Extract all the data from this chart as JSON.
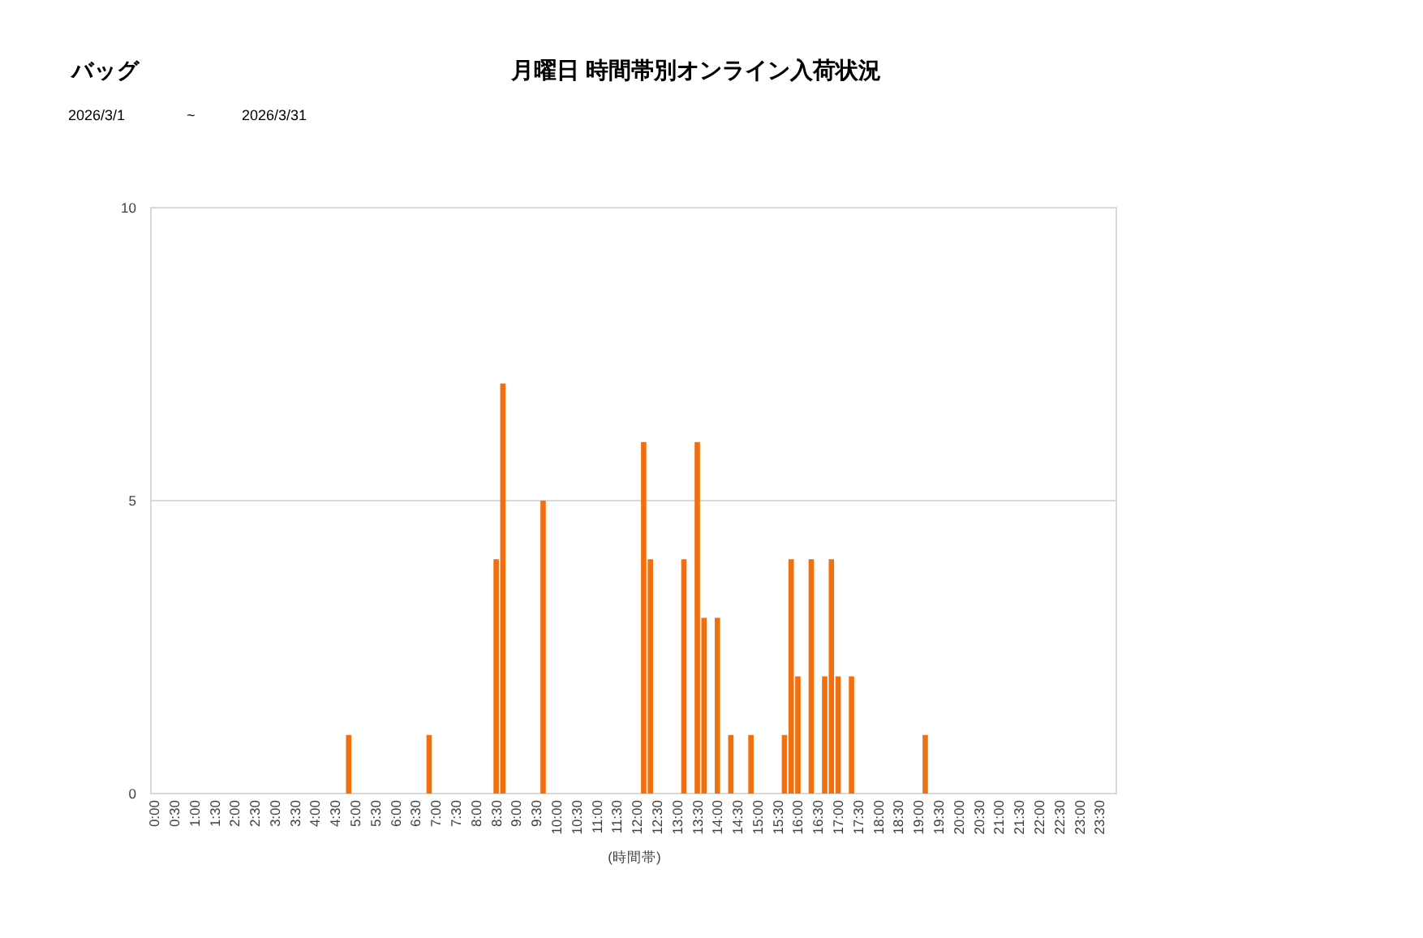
{
  "chart_data": {
    "type": "bar",
    "title": "月曜日 時間帯別オンライン入荷状況",
    "annotations": [
      "バッグ",
      "2026/3/1",
      "~",
      "2026/3/31"
    ],
    "xlabel": "(時間帯)",
    "categories": [
      "0:00",
      null,
      null,
      "0:30",
      null,
      null,
      "1:00",
      null,
      null,
      "1:30",
      null,
      null,
      "2:00",
      null,
      null,
      "2:30",
      null,
      null,
      "3:00",
      null,
      null,
      "3:30",
      null,
      null,
      "4:00",
      null,
      null,
      "4:30",
      null,
      null,
      "5:00",
      null,
      null,
      "5:30",
      null,
      null,
      "6:00",
      null,
      null,
      "6:30",
      null,
      null,
      "7:00",
      null,
      null,
      "7:30",
      null,
      null,
      "8:00",
      null,
      null,
      "8:30",
      null,
      null,
      "9:00",
      null,
      null,
      "9:30",
      null,
      null,
      "10:00",
      null,
      null,
      "10:30",
      null,
      null,
      "11:00",
      null,
      null,
      "11:30",
      null,
      null,
      "12:00",
      null,
      null,
      "12:30",
      null,
      null,
      "13:00",
      null,
      null,
      "13:30",
      null,
      null,
      "14:00",
      null,
      null,
      "14:30",
      null,
      null,
      "15:00",
      null,
      null,
      "15:30",
      null,
      null,
      "16:00",
      null,
      null,
      "16:30",
      null,
      null,
      "17:00",
      null,
      null,
      "17:30",
      null,
      null,
      "18:00",
      null,
      null,
      "18:30",
      null,
      null,
      "19:00",
      null,
      null,
      "19:30",
      null,
      null,
      "20:00",
      null,
      null,
      "20:30",
      null,
      null,
      "21:00",
      null,
      null,
      "21:30",
      null,
      null,
      "22:00",
      null,
      null,
      "22:30",
      null,
      null,
      "23:00",
      null,
      null,
      "23:30",
      null,
      null
    ],
    "values": [
      0,
      0,
      0,
      0,
      0,
      0,
      0,
      0,
      0,
      0,
      0,
      0,
      0,
      0,
      0,
      0,
      0,
      0,
      0,
      0,
      0,
      0,
      0,
      0,
      0,
      0,
      0,
      0,
      0,
      1,
      0,
      0,
      0,
      0,
      0,
      0,
      0,
      0,
      0,
      0,
      0,
      1,
      0,
      0,
      0,
      0,
      0,
      0,
      0,
      0,
      0,
      4,
      7,
      0,
      0,
      0,
      0,
      0,
      5,
      0,
      0,
      0,
      0,
      0,
      0,
      0,
      0,
      0,
      0,
      0,
      0,
      0,
      0,
      6,
      4,
      0,
      0,
      0,
      0,
      4,
      0,
      6,
      3,
      0,
      3,
      0,
      1,
      0,
      0,
      1,
      0,
      0,
      0,
      0,
      1,
      4,
      2,
      0,
      4,
      0,
      2,
      4,
      2,
      0,
      2,
      0,
      0,
      0,
      0,
      0,
      0,
      0,
      0,
      0,
      0,
      1,
      0,
      0,
      0,
      0,
      0,
      0,
      0,
      0,
      0,
      0,
      0,
      0,
      0,
      0,
      0,
      0,
      0,
      0,
      0,
      0,
      0,
      0,
      0,
      0,
      0,
      0,
      0,
      0
    ],
    "color": "#f0700f",
    "ylim": [
      0,
      10
    ],
    "yticks": [
      0,
      5,
      10
    ],
    "grid": "y"
  }
}
